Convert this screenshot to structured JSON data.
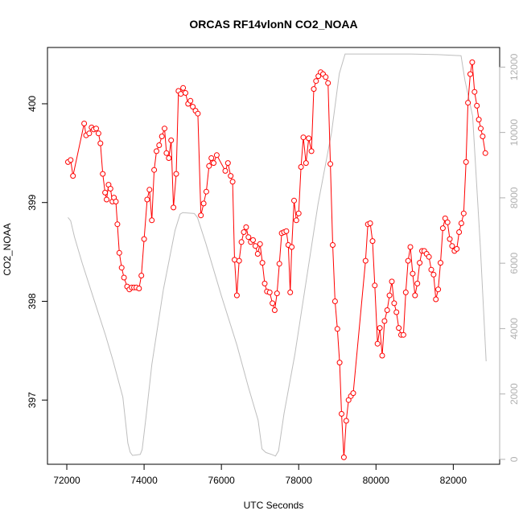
{
  "chart_data": {
    "type": "line",
    "title": "ORCAS RF14vlonN CO2_NOAA",
    "xlabel": "UTC Seconds",
    "ylabel": "CO2_NOAA",
    "xlim": [
      71500,
      83200
    ],
    "ylim": [
      396.35,
      400.57
    ],
    "y2lim": [
      -150,
      12600
    ],
    "x_ticks": [
      72000,
      74000,
      76000,
      78000,
      80000,
      82000
    ],
    "y_ticks": [
      397,
      398,
      399,
      400
    ],
    "y2_ticks": [
      0,
      2000,
      4000,
      6000,
      8000,
      10000,
      12000
    ],
    "colors": {
      "co2": "#ff0000",
      "altitude": "#bebebe"
    },
    "series": [
      {
        "color": "co2",
        "style": "line+points",
        "points": [
          [
            72030,
            399.41
          ],
          [
            72100,
            399.43
          ],
          [
            72160,
            399.27
          ],
          [
            72450,
            399.8
          ],
          [
            72500,
            399.68
          ],
          [
            72580,
            399.7
          ],
          [
            72640,
            399.76
          ],
          [
            72700,
            399.74
          ],
          [
            72760,
            399.75
          ],
          [
            72820,
            399.7
          ],
          [
            72870,
            399.6
          ],
          [
            72930,
            399.29
          ],
          [
            72990,
            399.1
          ],
          [
            73030,
            399.03
          ],
          [
            73080,
            399.18
          ],
          [
            73130,
            399.14
          ],
          [
            73180,
            399.01
          ],
          [
            73220,
            399.05
          ],
          [
            73270,
            399.01
          ],
          [
            73310,
            398.78
          ],
          [
            73360,
            398.49
          ],
          [
            73420,
            398.34
          ],
          [
            73480,
            398.24
          ],
          [
            73560,
            398.15
          ],
          [
            73620,
            398.12
          ],
          [
            73680,
            398.14
          ],
          [
            73740,
            398.14
          ],
          [
            73800,
            398.14
          ],
          [
            73870,
            398.13
          ],
          [
            73930,
            398.26
          ],
          [
            74000,
            398.63
          ],
          [
            74080,
            399.03
          ],
          [
            74140,
            399.13
          ],
          [
            74200,
            398.82
          ],
          [
            74260,
            399.33
          ],
          [
            74320,
            399.52
          ],
          [
            74390,
            399.58
          ],
          [
            74460,
            399.67
          ],
          [
            74530,
            399.75
          ],
          [
            74580,
            399.5
          ],
          [
            74640,
            399.45
          ],
          [
            74700,
            399.63
          ],
          [
            74760,
            398.95
          ],
          [
            74830,
            399.29
          ],
          [
            74890,
            400.13
          ],
          [
            74950,
            400.1
          ],
          [
            75010,
            400.16
          ],
          [
            75070,
            400.11
          ],
          [
            75140,
            400.0
          ],
          [
            75200,
            400.03
          ],
          [
            75260,
            399.97
          ],
          [
            75330,
            399.93
          ],
          [
            75390,
            399.9
          ],
          [
            75470,
            398.87
          ],
          [
            75540,
            398.99
          ],
          [
            75610,
            399.11
          ],
          [
            75680,
            399.37
          ],
          [
            75740,
            399.45
          ],
          [
            75800,
            399.4
          ],
          [
            75880,
            399.48
          ],
          [
            76100,
            399.32
          ],
          [
            76170,
            399.4
          ],
          [
            76240,
            399.27
          ],
          [
            76290,
            399.21
          ],
          [
            76340,
            398.42
          ],
          [
            76400,
            398.06
          ],
          [
            76460,
            398.41
          ],
          [
            76520,
            398.6
          ],
          [
            76580,
            398.7
          ],
          [
            76640,
            398.75
          ],
          [
            76700,
            398.65
          ],
          [
            76760,
            398.6
          ],
          [
            76820,
            398.62
          ],
          [
            76880,
            398.56
          ],
          [
            76940,
            398.48
          ],
          [
            77000,
            398.58
          ],
          [
            77060,
            398.39
          ],
          [
            77120,
            398.18
          ],
          [
            77180,
            398.1
          ],
          [
            77250,
            398.09
          ],
          [
            77320,
            397.98
          ],
          [
            77380,
            397.91
          ],
          [
            77440,
            398.08
          ],
          [
            77500,
            398.38
          ],
          [
            77560,
            398.69
          ],
          [
            77620,
            398.7
          ],
          [
            77680,
            398.71
          ],
          [
            77730,
            398.57
          ],
          [
            77780,
            398.09
          ],
          [
            77820,
            398.55
          ],
          [
            77880,
            399.02
          ],
          [
            77940,
            398.82
          ],
          [
            78000,
            398.89
          ],
          [
            78060,
            399.36
          ],
          [
            78120,
            399.66
          ],
          [
            78190,
            399.4
          ],
          [
            78260,
            399.65
          ],
          [
            78330,
            399.52
          ],
          [
            78390,
            400.15
          ],
          [
            78450,
            400.23
          ],
          [
            78510,
            400.28
          ],
          [
            78570,
            400.32
          ],
          [
            78630,
            400.3
          ],
          [
            78700,
            400.27
          ],
          [
            78760,
            400.21
          ],
          [
            78820,
            399.39
          ],
          [
            78880,
            398.57
          ],
          [
            78940,
            398.0
          ],
          [
            79000,
            397.72
          ],
          [
            79060,
            397.38
          ],
          [
            79110,
            396.86
          ],
          [
            79170,
            396.42
          ],
          [
            79230,
            396.79
          ],
          [
            79290,
            397.0
          ],
          [
            79350,
            397.04
          ],
          [
            79410,
            397.07
          ],
          [
            79730,
            398.41
          ],
          [
            79790,
            398.78
          ],
          [
            79850,
            398.79
          ],
          [
            79910,
            398.61
          ],
          [
            79970,
            398.16
          ],
          [
            80040,
            397.57
          ],
          [
            80100,
            397.73
          ],
          [
            80160,
            397.45
          ],
          [
            80220,
            397.8
          ],
          [
            80290,
            397.91
          ],
          [
            80350,
            398.06
          ],
          [
            80410,
            398.2
          ],
          [
            80470,
            397.98
          ],
          [
            80530,
            397.89
          ],
          [
            80590,
            397.73
          ],
          [
            80650,
            397.66
          ],
          [
            80710,
            397.66
          ],
          [
            80770,
            398.09
          ],
          [
            80830,
            398.41
          ],
          [
            80890,
            398.55
          ],
          [
            80950,
            398.28
          ],
          [
            81010,
            398.06
          ],
          [
            81070,
            398.18
          ],
          [
            81130,
            398.39
          ],
          [
            81190,
            398.51
          ],
          [
            81250,
            398.51
          ],
          [
            81310,
            398.48
          ],
          [
            81370,
            398.45
          ],
          [
            81430,
            398.32
          ],
          [
            81490,
            398.27
          ],
          [
            81550,
            398.02
          ],
          [
            81610,
            398.12
          ],
          [
            81670,
            398.39
          ],
          [
            81730,
            398.74
          ],
          [
            81790,
            398.84
          ],
          [
            81850,
            398.8
          ],
          [
            81910,
            398.63
          ],
          [
            81970,
            398.56
          ],
          [
            82030,
            398.51
          ],
          [
            82090,
            398.53
          ],
          [
            82150,
            398.7
          ],
          [
            82210,
            398.79
          ],
          [
            82270,
            398.89
          ],
          [
            82330,
            399.41
          ],
          [
            82380,
            400.01
          ],
          [
            82440,
            400.3
          ],
          [
            82490,
            400.42
          ],
          [
            82550,
            400.12
          ],
          [
            82610,
            399.98
          ],
          [
            82660,
            399.84
          ],
          [
            82710,
            399.75
          ],
          [
            82760,
            399.67
          ],
          [
            82830,
            399.5
          ]
        ]
      },
      {
        "color": "altitude",
        "style": "line",
        "axis": "right",
        "points": [
          [
            72030,
            7400
          ],
          [
            72100,
            7300
          ],
          [
            72200,
            6800
          ],
          [
            72400,
            6000
          ],
          [
            72700,
            4900
          ],
          [
            73000,
            3800
          ],
          [
            73200,
            3000
          ],
          [
            73450,
            1900
          ],
          [
            73580,
            500
          ],
          [
            73640,
            220
          ],
          [
            73700,
            120
          ],
          [
            73900,
            150
          ],
          [
            73950,
            300
          ],
          [
            74050,
            1300
          ],
          [
            74200,
            2900
          ],
          [
            74500,
            5200
          ],
          [
            74800,
            7000
          ],
          [
            74930,
            7500
          ],
          [
            75000,
            7550
          ],
          [
            75300,
            7520
          ],
          [
            75380,
            7400
          ],
          [
            75600,
            6600
          ],
          [
            76000,
            5000
          ],
          [
            76400,
            3500
          ],
          [
            76700,
            2200
          ],
          [
            76950,
            1200
          ],
          [
            77050,
            320
          ],
          [
            77150,
            210
          ],
          [
            77300,
            150
          ],
          [
            77400,
            100
          ],
          [
            77480,
            260
          ],
          [
            77620,
            1400
          ],
          [
            77900,
            3200
          ],
          [
            78200,
            5500
          ],
          [
            78500,
            7800
          ],
          [
            78850,
            10000
          ],
          [
            79050,
            11800
          ],
          [
            79200,
            12400
          ],
          [
            80000,
            12400
          ],
          [
            80900,
            12400
          ],
          [
            81600,
            12380
          ],
          [
            82200,
            12350
          ],
          [
            82300,
            11600
          ],
          [
            82500,
            10500
          ],
          [
            82700,
            6500
          ],
          [
            82850,
            3000
          ]
        ]
      }
    ]
  }
}
